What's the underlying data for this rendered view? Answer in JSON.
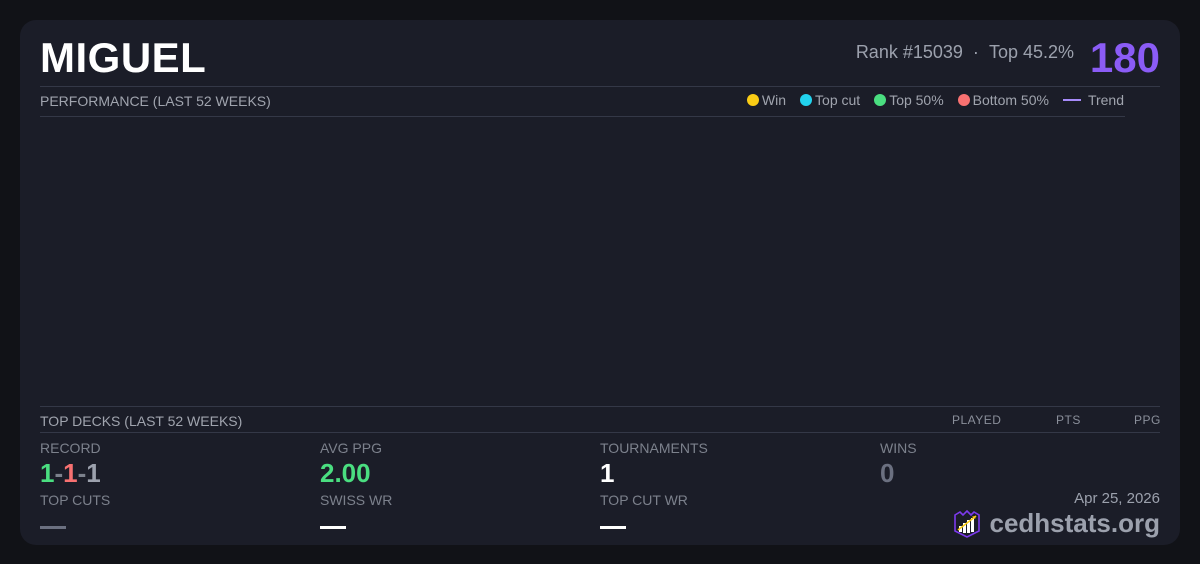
{
  "player": {
    "name": "MIGUEL",
    "rank": "Rank #15039",
    "separator": "·",
    "top_pct": "Top 45.2%",
    "score": "180"
  },
  "performance": {
    "title": "PERFORMANCE (LAST 52 WEEKS)",
    "legend": [
      {
        "label": "Win",
        "color": "#facc15"
      },
      {
        "label": "Top cut",
        "color": "#22d3ee"
      },
      {
        "label": "Top 50%",
        "color": "#4ade80"
      },
      {
        "label": "Bottom 50%",
        "color": "#f87171"
      },
      {
        "label": "Trend",
        "color": "#a78bfa"
      }
    ]
  },
  "top_decks": {
    "title": "TOP DECKS (LAST 52 WEEKS)",
    "columns": [
      "PLAYED",
      "PTS",
      "PPG"
    ]
  },
  "stats": {
    "record": {
      "label": "RECORD",
      "wins": "1",
      "losses": "1",
      "draws": "1",
      "sep": "-"
    },
    "avg_ppg": {
      "label": "AVG PPG",
      "value": "2.00"
    },
    "tournaments": {
      "label": "TOURNAMENTS",
      "value": "1"
    },
    "wins": {
      "label": "WINS",
      "value": "0"
    },
    "top_cuts": {
      "label": "TOP CUTS"
    },
    "swiss_wr": {
      "label": "SWISS WR"
    },
    "top_cut_wr": {
      "label": "TOP CUT WR"
    }
  },
  "footer": {
    "date": "Apr 25, 2026",
    "brand": "cedhstats.org"
  }
}
